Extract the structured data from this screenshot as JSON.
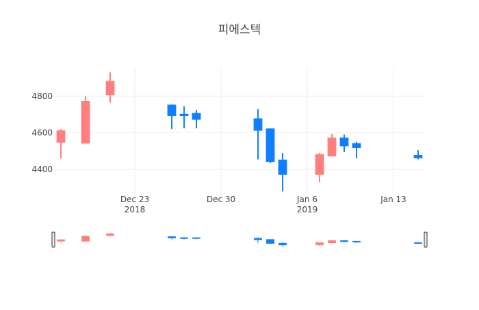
{
  "chart_data": {
    "type": "candlestick",
    "title": "피에스텍",
    "xlabel": "",
    "ylabel": "",
    "x_range": [
      "2018-12-17",
      "2019-01-15"
    ],
    "y_range": [
      4270,
      4960
    ],
    "y_ticks": [
      4400,
      4600,
      4800
    ],
    "x_ticks": [
      {
        "date": "2018-12-23",
        "label": "Dec 23",
        "sublabel": "2018"
      },
      {
        "date": "2018-12-30",
        "label": "Dec 30",
        "sublabel": ""
      },
      {
        "date": "2019-01-06",
        "label": "Jan 6",
        "sublabel": "2019"
      },
      {
        "date": "2019-01-13",
        "label": "Jan 13",
        "sublabel": ""
      }
    ],
    "grid": true,
    "legend": "none",
    "rangeslider": true,
    "increasing_color": "#FF7F7F",
    "decreasing_color": "#0F7FFF",
    "candles": [
      {
        "date": "2018-12-17",
        "open": 4550,
        "high": 4620,
        "low": 4460,
        "close": 4610
      },
      {
        "date": "2018-12-19",
        "open": 4545,
        "high": 4800,
        "low": 4545,
        "close": 4770
      },
      {
        "date": "2018-12-21",
        "open": 4810,
        "high": 4930,
        "low": 4765,
        "close": 4880
      },
      {
        "date": "2018-12-26",
        "open": 4750,
        "high": 4755,
        "low": 4620,
        "close": 4695
      },
      {
        "date": "2018-12-27",
        "open": 4700,
        "high": 4745,
        "low": 4625,
        "close": 4695
      },
      {
        "date": "2018-12-28",
        "open": 4705,
        "high": 4725,
        "low": 4625,
        "close": 4675
      },
      {
        "date": "2019-01-02",
        "open": 4675,
        "high": 4730,
        "low": 4455,
        "close": 4615
      },
      {
        "date": "2019-01-03",
        "open": 4620,
        "high": 4625,
        "low": 4435,
        "close": 4445
      },
      {
        "date": "2019-01-04",
        "open": 4450,
        "high": 4490,
        "low": 4280,
        "close": 4375
      },
      {
        "date": "2019-01-07",
        "open": 4375,
        "high": 4490,
        "low": 4330,
        "close": 4480
      },
      {
        "date": "2019-01-08",
        "open": 4475,
        "high": 4595,
        "low": 4475,
        "close": 4570
      },
      {
        "date": "2019-01-09",
        "open": 4570,
        "high": 4590,
        "low": 4495,
        "close": 4530
      },
      {
        "date": "2019-01-10",
        "open": 4540,
        "high": 4550,
        "low": 4460,
        "close": 4520
      },
      {
        "date": "2019-01-15",
        "open": 4475,
        "high": 4505,
        "low": 4455,
        "close": 4465
      }
    ]
  }
}
